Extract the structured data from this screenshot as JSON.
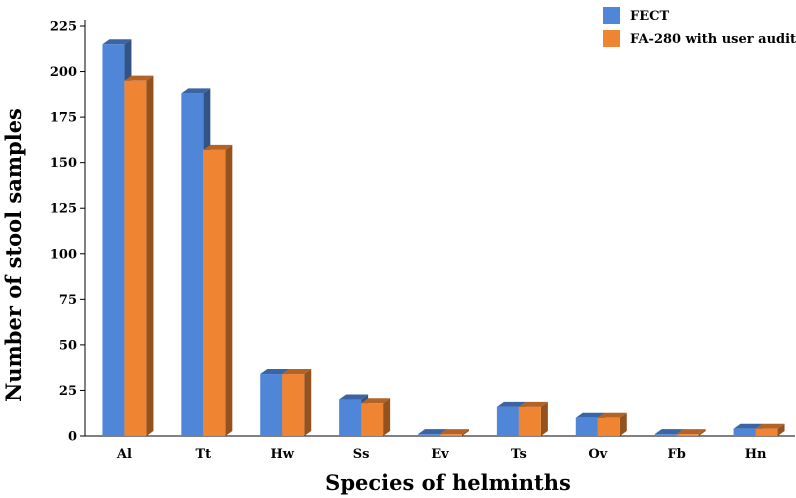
{
  "chart_data": {
    "type": "bar",
    "title": "",
    "xlabel": "Species of helminths",
    "ylabel": "Number of stool samples",
    "categories": [
      "Al",
      "Tt",
      "Hw",
      "Ss",
      "Ev",
      "Ts",
      "Ov",
      "Fb",
      "Hn"
    ],
    "series": [
      {
        "name": "FECT",
        "values": [
          215,
          188,
          34,
          20,
          1,
          16,
          10,
          1,
          4
        ],
        "color": "#4f86d8"
      },
      {
        "name": "FA-280 with user audit",
        "values": [
          195,
          157,
          34,
          18,
          1,
          16,
          10,
          1,
          4
        ],
        "color": "#ef8432"
      }
    ],
    "ylim": [
      0,
      225
    ],
    "yticks": [
      0,
      25,
      50,
      75,
      100,
      125,
      150,
      175,
      200,
      225
    ],
    "grid": false,
    "legend_position": "top-right",
    "style": "3d-bar"
  }
}
